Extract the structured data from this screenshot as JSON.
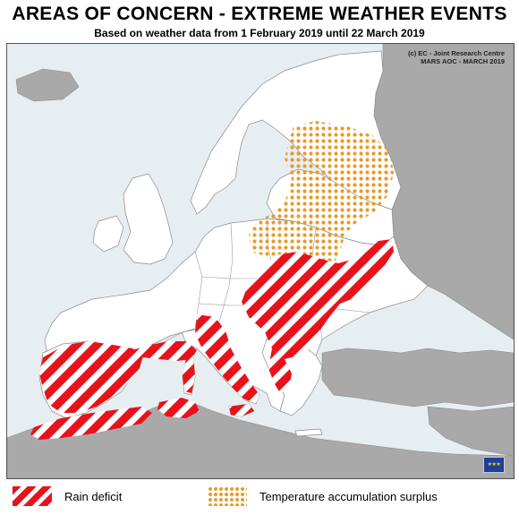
{
  "header": {
    "title": "AREAS OF CONCERN - EXTREME WEATHER EVENTS",
    "subtitle": "Based on weather data from 1 February 2019 until 22 March 2019"
  },
  "credits": {
    "line1": "(c) EC - Joint Research Centre",
    "line2": "MARS AOC - MARCH 2019"
  },
  "legend": {
    "rain_label": "Rain deficit",
    "temp_label": "Temperature accumulation surplus"
  },
  "colors": {
    "rain_deficit": "#e8121b",
    "temperature_surplus": "#e69b2a",
    "land_focus": "#ffffff",
    "land_outside": "#a9a9a9",
    "sea": "#e6eef2"
  },
  "icons": {
    "eu_flag": "eu-flag-icon"
  }
}
